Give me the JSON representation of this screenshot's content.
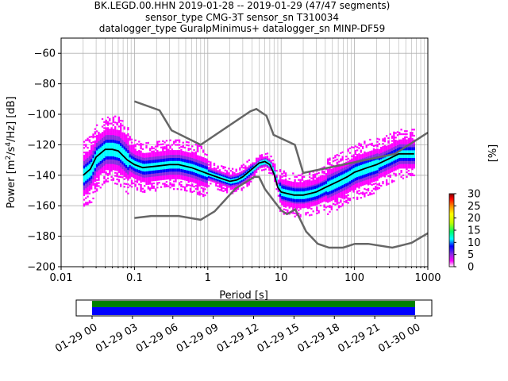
{
  "chart_data": {
    "type": "ppsd",
    "title_lines": [
      "BK.LEGD.00.HHN   2019-01-28 -- 2019-01-29  (47/47 segments)",
      "sensor_type CMG-3T sensor_sn T310034",
      "datalogger_type GuralpMinimus+ datalogger_sn MINP-DF59"
    ],
    "xlabel": "Period [s]",
    "ylabel_base": "Power [m",
    "ylabel_parts": [
      "2",
      "/s",
      "4",
      "/Hz] [dB]"
    ],
    "x_scale": "log",
    "xlim": [
      0.01,
      1000
    ],
    "ylim": [
      -200,
      -50
    ],
    "x_ticks": [
      {
        "value": 0.01,
        "label": "0.01"
      },
      {
        "value": 0.1,
        "label": "0.1"
      },
      {
        "value": 1,
        "label": "1"
      },
      {
        "value": 10,
        "label": "10"
      },
      {
        "value": 100,
        "label": "100"
      },
      {
        "value": 1000,
        "label": "1000"
      }
    ],
    "y_ticks": [
      -60,
      -80,
      -100,
      -120,
      -140,
      -160,
      -180,
      -200
    ],
    "grid": true,
    "colorbar": {
      "label": "[%]",
      "ticks": [
        0,
        5,
        10,
        15,
        20,
        25,
        30
      ],
      "range": [
        0,
        30
      ],
      "colors": [
        "#ffffff",
        "#ff00ff",
        "#8a2be2",
        "#0000ff",
        "#00ffff",
        "#00ff66",
        "#c0ff00",
        "#ffff00",
        "#ff8c00",
        "#ff0000",
        "#7a0000"
      ]
    },
    "series": [
      {
        "role": "mean",
        "color": "#000000",
        "points": [
          [
            0.02,
            -140
          ],
          [
            0.025,
            -136
          ],
          [
            0.03,
            -128
          ],
          [
            0.04,
            -123
          ],
          [
            0.05,
            -123
          ],
          [
            0.06,
            -124
          ],
          [
            0.08,
            -130
          ],
          [
            0.1,
            -133
          ],
          [
            0.13,
            -135
          ],
          [
            0.2,
            -134
          ],
          [
            0.3,
            -133
          ],
          [
            0.4,
            -133
          ],
          [
            0.6,
            -135
          ],
          [
            1,
            -139
          ],
          [
            1.5,
            -142
          ],
          [
            2,
            -144
          ],
          [
            2.5,
            -143
          ],
          [
            3,
            -141
          ],
          [
            4,
            -136
          ],
          [
            5,
            -132
          ],
          [
            6,
            -131
          ],
          [
            7,
            -133
          ],
          [
            8,
            -139
          ],
          [
            9,
            -148
          ],
          [
            10,
            -151
          ],
          [
            12,
            -152
          ],
          [
            15,
            -153
          ],
          [
            20,
            -153
          ],
          [
            25,
            -152
          ],
          [
            30,
            -151
          ],
          [
            40,
            -148
          ],
          [
            60,
            -144
          ],
          [
            80,
            -141
          ],
          [
            100,
            -138
          ],
          [
            150,
            -135
          ],
          [
            200,
            -133
          ],
          [
            300,
            -129
          ],
          [
            400,
            -126
          ],
          [
            500,
            -126
          ],
          [
            650,
            -126
          ]
        ]
      },
      {
        "role": "high_noise_model",
        "color": "#666666",
        "points": [
          [
            0.1,
            -91.5
          ],
          [
            0.22,
            -97.4
          ],
          [
            0.32,
            -110.5
          ],
          [
            0.8,
            -120
          ],
          [
            3.8,
            -98
          ],
          [
            4.6,
            -96.5
          ],
          [
            6.3,
            -101
          ],
          [
            7.9,
            -113.5
          ],
          [
            15.4,
            -120
          ],
          [
            20,
            -138.5
          ],
          [
            354.8,
            -126
          ],
          [
            1000,
            -112
          ]
        ]
      },
      {
        "role": "low_noise_model",
        "color": "#666666",
        "points": [
          [
            0.1,
            -168
          ],
          [
            0.17,
            -166.7
          ],
          [
            0.4,
            -166.7
          ],
          [
            0.8,
            -169.2
          ],
          [
            1.24,
            -163.7
          ],
          [
            2.4,
            -148.6
          ],
          [
            4.3,
            -141.1
          ],
          [
            5,
            -141.1
          ],
          [
            6,
            -149
          ],
          [
            10,
            -163
          ],
          [
            12,
            -165.5
          ],
          [
            15.6,
            -162.4
          ],
          [
            21.9,
            -177
          ],
          [
            31.6,
            -185
          ],
          [
            45,
            -187.5
          ],
          [
            70,
            -187.5
          ],
          [
            101,
            -185
          ],
          [
            154,
            -185
          ],
          [
            328,
            -187.5
          ],
          [
            600,
            -184.4
          ],
          [
            1000,
            -178
          ]
        ]
      }
    ],
    "timeline": {
      "tick_labels": [
        "01-29 00",
        "01-29 03",
        "01-29 06",
        "01-29 09",
        "01-29 12",
        "01-29 15",
        "01-29 18",
        "01-29 21",
        "01-30 00"
      ],
      "coverage_start": "01-29 00",
      "coverage_end": "01-30 00",
      "coverage_colors": [
        "#008000",
        "#0000ff"
      ]
    }
  }
}
